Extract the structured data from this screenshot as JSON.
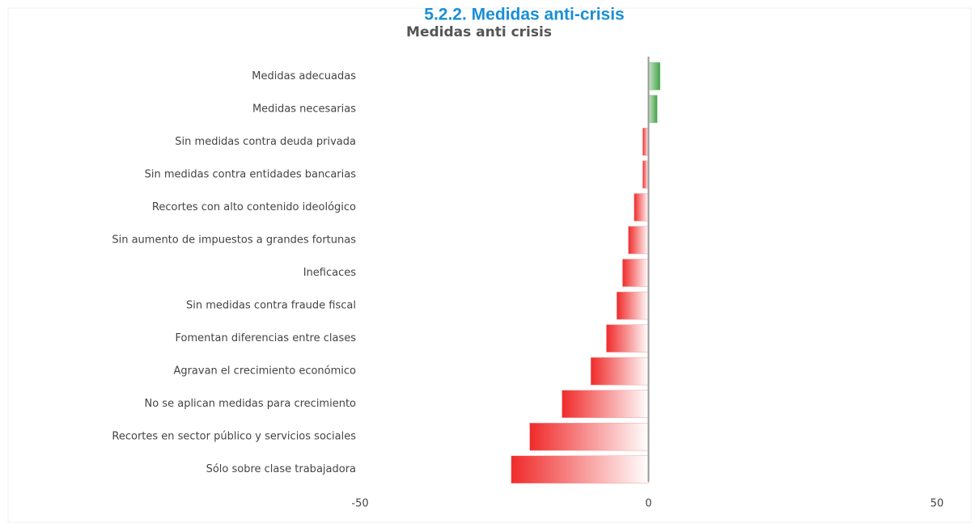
{
  "heading": "5.2.2. Medidas anti-crisis",
  "chart_data": {
    "type": "hbar",
    "title": "Medidas anti crisis",
    "categories": [
      "Medidas adecuadas",
      "Medidas necesarias",
      "Sin medidas contra deuda privada",
      "Sin medidas contra entidades bancarias",
      "Recortes con alto contenido ideológico",
      "Sin aumento de impuestos a grandes fortunas",
      "Ineficaces",
      "Sin medidas contra fraude fiscal",
      "Fomentan diferencias entre clases",
      "Agravan el crecimiento económico",
      "No se aplican medidas para crecimiento",
      "Recortes en sector público y servicios sociales",
      "Sólo sobre clase trabajadora"
    ],
    "values": [
      2,
      1.5,
      -1,
      -1,
      -2.5,
      -3.5,
      -4.5,
      -5.5,
      -7.3,
      -10,
      -15,
      -20.6,
      -23.8
    ],
    "positive_color": "#43a047",
    "negative_color": "#f02a2a",
    "xlim": [
      -50,
      50
    ],
    "xticks": [
      -50,
      0,
      50
    ],
    "grid": false
  }
}
